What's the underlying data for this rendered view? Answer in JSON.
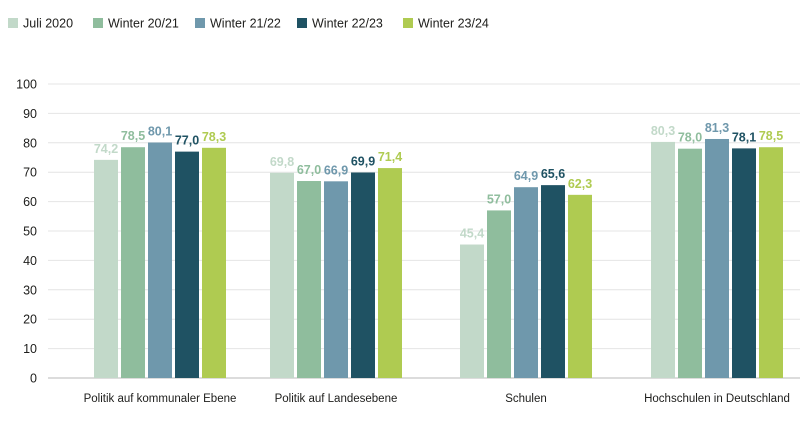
{
  "chart_data": {
    "type": "bar",
    "categories": [
      "Politik auf kommunaler Ebene",
      "Politik auf Landesebene",
      "Schulen",
      "Hochschulen in Deutschland"
    ],
    "series": [
      {
        "name": "Juli 2020",
        "color": "#c2d9c9",
        "values": [
          74.2,
          69.8,
          45.4,
          80.3
        ],
        "labels": [
          "74,2",
          "69,8",
          "45,4",
          "80,3"
        ]
      },
      {
        "name": "Winter 20/21",
        "color": "#8fbd9d",
        "values": [
          78.5,
          67.0,
          57.0,
          78.0
        ],
        "labels": [
          "78,5",
          "67,0",
          "57,0",
          "78,0"
        ]
      },
      {
        "name": "Winter 21/22",
        "color": "#6f98ac",
        "values": [
          80.1,
          66.9,
          64.9,
          81.3
        ],
        "labels": [
          "80,1",
          "66,9",
          "64,9",
          "81,3"
        ]
      },
      {
        "name": "Winter 22/23",
        "color": "#1f5263",
        "values": [
          77.0,
          69.9,
          65.6,
          78.1
        ],
        "labels": [
          "77,0",
          "69,9",
          "65,6",
          "78,1"
        ]
      },
      {
        "name": "Winter 23/24",
        "color": "#afcb51",
        "values": [
          78.3,
          71.4,
          62.3,
          78.5
        ],
        "labels": [
          "78,3",
          "71,4",
          "62,3",
          "78,5"
        ]
      }
    ],
    "yticks": [
      0,
      10,
      20,
      30,
      40,
      50,
      60,
      70,
      80,
      90,
      100
    ],
    "ylim": [
      0,
      100
    ],
    "grid": true,
    "legend": "top-left"
  }
}
